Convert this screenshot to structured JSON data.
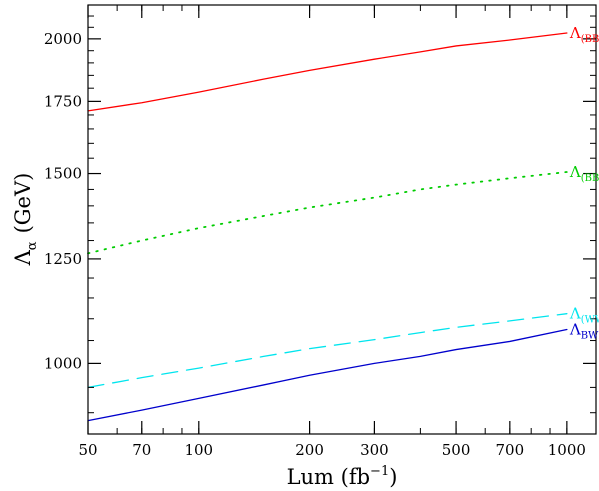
{
  "chart_data": {
    "type": "line",
    "title": "",
    "xlabel": "Lum (fb",
    "xlabel_sup": "−1",
    "xlabel_tail": ")",
    "ylabel": "Λ",
    "ylabel_sub": "α",
    "ylabel_tail": "(GeV)",
    "xscale": "log",
    "yscale": "log",
    "xlim": [
      50,
      1200
    ],
    "ylim": [
      860,
      2150
    ],
    "x_ticks": [
      50,
      70,
      100,
      200,
      300,
      500,
      700,
      1000
    ],
    "x_tick_labels": [
      "50",
      "70",
      "100",
      "200",
      "300",
      "500",
      "700",
      "1000"
    ],
    "y_ticks": [
      1000,
      1250,
      1500,
      1750,
      2000
    ],
    "y_tick_labels": [
      "1000",
      "1250",
      "1500",
      "1750",
      "2000"
    ],
    "series": [
      {
        "name": "(BB)(BB)",
        "label_main": "Λ",
        "label_sub": "(BB)(BB)",
        "color": "#ff0000",
        "style": "solid",
        "x": [
          50,
          70,
          100,
          150,
          200,
          300,
          400,
          500,
          700,
          1000
        ],
        "y": [
          1715,
          1745,
          1785,
          1835,
          1870,
          1915,
          1945,
          1970,
          1995,
          2025
        ]
      },
      {
        "name": "(BB)(WW)",
        "label_main": "Λ",
        "label_sub": "(BB)(WW)",
        "color": "#00cc00",
        "style": "dotted",
        "x": [
          50,
          70,
          100,
          150,
          200,
          300,
          400,
          500,
          700,
          1000
        ],
        "y": [
          1265,
          1300,
          1335,
          1370,
          1395,
          1425,
          1450,
          1465,
          1485,
          1505
        ]
      },
      {
        "name": "(WW)(WW)",
        "label_main": "Λ",
        "label_sub": "(WW)(WW)",
        "color": "#00e5ee",
        "style": "dashed",
        "x": [
          50,
          70,
          100,
          150,
          200,
          300,
          400,
          500,
          700,
          1000
        ],
        "y": [
          950,
          970,
          990,
          1015,
          1032,
          1052,
          1068,
          1080,
          1095,
          1112
        ]
      },
      {
        "name": "BWBW",
        "label_main": "Λ",
        "label_sub": "BWBW",
        "color": "#0000cc",
        "style": "solid",
        "x": [
          50,
          70,
          100,
          150,
          200,
          300,
          400,
          500,
          700,
          1000
        ],
        "y": [
          885,
          905,
          928,
          955,
          975,
          1000,
          1015,
          1030,
          1048,
          1075
        ]
      }
    ]
  }
}
